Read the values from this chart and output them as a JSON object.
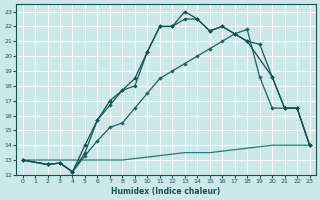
{
  "xlabel": "Humidex (Indice chaleur)",
  "xlim": [
    -0.5,
    23.5
  ],
  "ylim": [
    12,
    23.5
  ],
  "xticks": [
    0,
    1,
    2,
    3,
    4,
    5,
    6,
    7,
    8,
    9,
    10,
    11,
    12,
    13,
    14,
    15,
    16,
    17,
    18,
    19,
    20,
    21,
    22,
    23
  ],
  "yticks": [
    12,
    13,
    14,
    15,
    16,
    17,
    18,
    19,
    20,
    21,
    22,
    23
  ],
  "bg_color": "#cce8e8",
  "grid_color": "#b0d8d8",
  "line1": {
    "x": [
      0,
      1,
      2,
      3,
      4,
      5,
      6,
      7,
      8,
      9,
      10,
      11,
      12,
      13,
      14,
      15,
      16,
      17,
      18,
      19,
      20,
      21,
      22,
      23
    ],
    "y": [
      13.0,
      13.0,
      13.0,
      13.0,
      13.0,
      13.0,
      13.0,
      13.0,
      13.0,
      13.1,
      13.2,
      13.3,
      13.4,
      13.5,
      13.5,
      13.5,
      13.6,
      13.7,
      13.8,
      13.9,
      14.0,
      14.0,
      14.0,
      14.0
    ],
    "color": "#2a7a7a",
    "lw": 0.9,
    "marker": null
  },
  "line2": {
    "x": [
      0,
      2,
      3,
      4,
      5,
      6,
      7,
      8,
      9,
      10,
      11,
      12,
      13,
      14,
      15,
      16,
      17,
      18,
      19,
      20,
      21,
      22,
      23
    ],
    "y": [
      13.0,
      12.7,
      12.8,
      12.2,
      13.3,
      14.3,
      15.2,
      15.5,
      16.5,
      17.5,
      18.5,
      19.0,
      19.5,
      20.0,
      20.5,
      21.0,
      21.5,
      21.8,
      18.6,
      16.5,
      16.5,
      16.5,
      14.0
    ],
    "color": "#206060",
    "lw": 0.9,
    "marker": "D"
  },
  "line3": {
    "x": [
      0,
      2,
      3,
      4,
      5,
      6,
      7,
      8,
      9,
      10,
      11,
      12,
      13,
      14,
      15,
      16,
      17,
      18,
      19,
      20,
      21,
      22,
      23
    ],
    "y": [
      13.0,
      12.7,
      12.8,
      12.2,
      13.5,
      15.7,
      16.7,
      17.7,
      18.0,
      20.3,
      22.0,
      22.0,
      22.5,
      22.5,
      21.7,
      22.0,
      21.5,
      21.0,
      20.8,
      18.6,
      16.5,
      16.5,
      14.0
    ],
    "color": "#1a5858",
    "lw": 0.9,
    "marker": "D"
  },
  "line4": {
    "x": [
      0,
      2,
      3,
      4,
      5,
      6,
      7,
      8,
      9,
      10,
      11,
      12,
      13,
      14,
      15,
      16,
      17,
      18,
      20,
      21,
      22,
      23
    ],
    "y": [
      13.0,
      12.7,
      12.8,
      12.2,
      14.0,
      15.7,
      17.0,
      17.7,
      18.5,
      20.3,
      22.0,
      22.0,
      23.0,
      22.5,
      21.7,
      22.0,
      21.5,
      21.0,
      18.6,
      16.5,
      16.5,
      14.0
    ],
    "color": "#165050",
    "lw": 0.9,
    "marker": "D"
  }
}
